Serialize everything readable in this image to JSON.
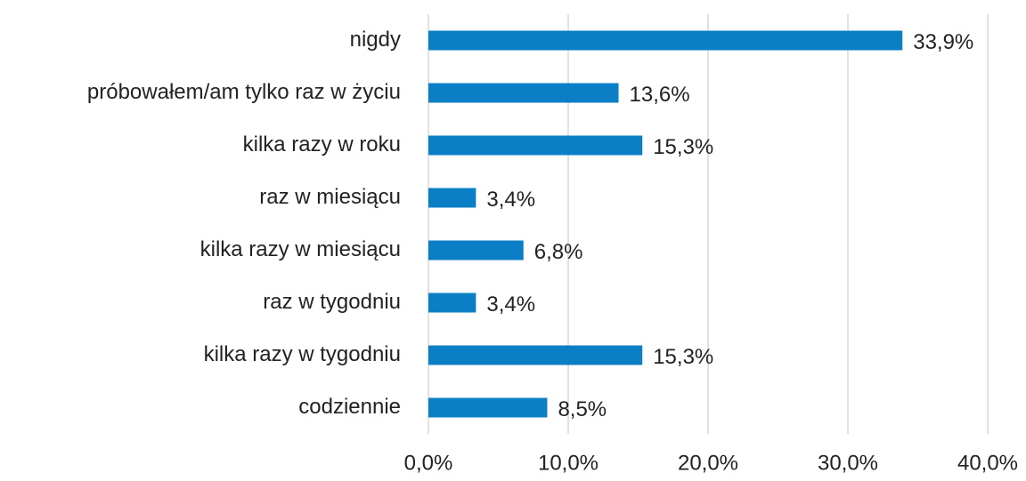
{
  "chart_data": {
    "type": "bar",
    "orientation": "horizontal",
    "categories": [
      "nigdy",
      "próbowałem/am tylko raz w życiu",
      "kilka razy w roku",
      "raz w miesiącu",
      "kilka razy w miesiącu",
      "raz w tygodniu",
      "kilka razy w tygodniu",
      "codziennie"
    ],
    "values": [
      33.9,
      13.6,
      15.3,
      3.4,
      6.8,
      3.4,
      15.3,
      8.5
    ],
    "value_labels": [
      "33,9%",
      "13,6%",
      "15,3%",
      "3,4%",
      "6,8%",
      "3,4%",
      "15,3%",
      "8,5%"
    ],
    "color": "#0b7fc6",
    "xlim": [
      0,
      40
    ],
    "xticks": [
      {
        "value": 0,
        "label": "0,0%"
      },
      {
        "value": 10,
        "label": "10,0%"
      },
      {
        "value": 20,
        "label": "20,0%"
      },
      {
        "value": 30,
        "label": "30,0%"
      },
      {
        "value": 40,
        "label": "40,0%"
      }
    ],
    "grid": true
  }
}
